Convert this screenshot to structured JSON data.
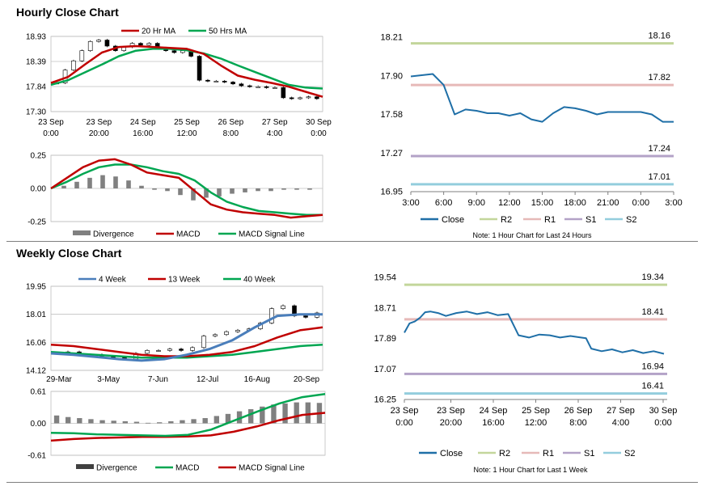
{
  "titles": {
    "hourly": "Hourly Close Chart",
    "weekly": "Weekly Close Chart"
  },
  "colors": {
    "red": "#c00000",
    "green": "#00a651",
    "blue": "#1f6fa7",
    "steel": "#4a7ebb",
    "r2": "#c3d69b",
    "r1": "#e6b9b8",
    "s1": "#b3a2c7",
    "s2": "#93cddd",
    "hist": "#808080"
  },
  "chart_data": [
    {
      "id": "hourly-price",
      "type": "line",
      "legend": [
        "20 Hr MA",
        "50 Hrs MA"
      ],
      "ylim": [
        17.3,
        18.93
      ],
      "yticks": [
        "18.93",
        "18.39",
        "17.84",
        "17.30"
      ],
      "xticks": [
        [
          "23 Sep",
          "0:00"
        ],
        [
          "23 Sep",
          "20:00"
        ],
        [
          "24 Sep",
          "16:00"
        ],
        [
          "25 Sep",
          "12:00"
        ],
        [
          "26 Sep",
          "8:00"
        ],
        [
          "27 Sep",
          "4:00"
        ],
        [
          "30 Sep",
          "0:00"
        ]
      ],
      "series": [
        {
          "name": "20 Hr MA",
          "values": [
            17.92,
            18.05,
            18.32,
            18.58,
            18.7,
            18.72,
            18.7,
            18.68,
            18.66,
            18.55,
            18.3,
            18.08,
            17.99,
            17.92,
            17.84,
            17.73,
            17.62
          ]
        },
        {
          "name": "50 Hrs MA",
          "values": [
            17.88,
            17.98,
            18.15,
            18.32,
            18.5,
            18.62,
            18.66,
            18.66,
            18.63,
            18.56,
            18.45,
            18.3,
            18.16,
            18.02,
            17.88,
            17.82,
            17.8
          ]
        },
        {
          "name": "Candles",
          "values": [
            17.92,
            18.2,
            18.4,
            18.62,
            18.82,
            18.85,
            18.72,
            18.62,
            18.7,
            18.78,
            18.74,
            18.78,
            18.68,
            18.62,
            18.58,
            18.62,
            18.5,
            17.98,
            17.96,
            17.96,
            17.94,
            17.9,
            17.86,
            17.84,
            17.84,
            17.82,
            17.82,
            17.6,
            17.58,
            17.6,
            17.62,
            17.58
          ]
        }
      ]
    },
    {
      "id": "hourly-macd",
      "type": "bar+line",
      "legend": [
        "Divergence",
        "MACD",
        "MACD Signal Line"
      ],
      "ylim": [
        -0.25,
        0.25
      ],
      "yticks": [
        "0.25",
        "0.00",
        "-0.25"
      ],
      "series": [
        {
          "name": "MACD",
          "values": [
            0,
            0.08,
            0.16,
            0.21,
            0.22,
            0.18,
            0.12,
            0.1,
            0.08,
            -0.02,
            -0.12,
            -0.16,
            -0.18,
            -0.19,
            -0.2,
            -0.22,
            -0.21,
            -0.2
          ]
        },
        {
          "name": "MACD Signal Line",
          "values": [
            0,
            0.05,
            0.11,
            0.16,
            0.18,
            0.18,
            0.16,
            0.13,
            0.11,
            0.06,
            -0.03,
            -0.1,
            -0.14,
            -0.17,
            -0.18,
            -0.19,
            -0.2,
            -0.2
          ]
        },
        {
          "name": "Divergence",
          "values": [
            0.02,
            0.05,
            0.08,
            0.1,
            0.09,
            0.06,
            0.02,
            -0.01,
            -0.02,
            -0.05,
            -0.09,
            -0.07,
            -0.06,
            -0.04,
            -0.03,
            -0.02,
            -0.02,
            -0.01,
            -0.01,
            -0.01
          ]
        }
      ]
    },
    {
      "id": "hourly-24h",
      "type": "line",
      "ylim": [
        16.95,
        18.21
      ],
      "yticks": [
        "18.21",
        "17.90",
        "17.58",
        "17.27",
        "16.95"
      ],
      "xticks": [
        "3:00",
        "6:00",
        "9:00",
        "12:00",
        "15:00",
        "18:00",
        "21:00",
        "0:00",
        "3:00"
      ],
      "levels": [
        {
          "name": "R2",
          "value": "18.16"
        },
        {
          "name": "R1",
          "value": "17.82"
        },
        {
          "name": "S1",
          "value": "17.24"
        },
        {
          "name": "S2",
          "value": "17.01"
        }
      ],
      "legend": [
        "Close",
        "R2",
        "R1",
        "S1",
        "S2"
      ],
      "note": "Note: 1 Hour Chart for Last 24 Hours",
      "x": [
        0,
        1,
        2,
        3,
        4,
        5,
        6,
        7,
        8,
        9,
        10,
        11,
        12,
        13,
        14,
        15,
        16,
        17,
        18,
        19,
        20,
        21,
        22,
        23,
        24
      ],
      "values": [
        17.89,
        17.9,
        17.91,
        17.82,
        17.58,
        17.62,
        17.61,
        17.59,
        17.59,
        17.57,
        17.59,
        17.54,
        17.52,
        17.59,
        17.64,
        17.63,
        17.61,
        17.58,
        17.6,
        17.6,
        17.6,
        17.6,
        17.58,
        17.52,
        17.52
      ]
    },
    {
      "id": "weekly-price",
      "type": "line",
      "legend": [
        "4 Week",
        "13 Week",
        "40 Week"
      ],
      "ylim": [
        14.12,
        19.95
      ],
      "yticks": [
        "19.95",
        "18.01",
        "16.06",
        "14.12"
      ],
      "xticks": [
        "29-Mar",
        "3-May",
        "7-Jun",
        "12-Jul",
        "16-Aug",
        "20-Sep"
      ],
      "series": [
        {
          "name": "4 Week",
          "values": [
            15.3,
            15.2,
            15.05,
            14.9,
            14.8,
            14.9,
            15.2,
            15.6,
            16.2,
            17.1,
            17.9,
            18.0,
            18.0
          ]
        },
        {
          "name": "13 Week",
          "values": [
            15.9,
            15.8,
            15.6,
            15.4,
            15.2,
            15.1,
            15.1,
            15.2,
            15.4,
            15.8,
            16.4,
            16.9,
            17.1
          ]
        },
        {
          "name": "40 Week",
          "values": [
            15.4,
            15.3,
            15.2,
            15.1,
            15.0,
            15.0,
            15.0,
            15.1,
            15.2,
            15.4,
            15.6,
            15.8,
            15.9
          ]
        },
        {
          "name": "Candles",
          "values": [
            15.3,
            15.4,
            15.2,
            15.2,
            15.1,
            15.0,
            14.9,
            15.3,
            15.5,
            15.5,
            15.6,
            15.5,
            15.7,
            16.5,
            16.6,
            16.8,
            16.9,
            17.0,
            17.4,
            18.4,
            18.6,
            17.9,
            17.8,
            18.1
          ]
        }
      ]
    },
    {
      "id": "weekly-macd",
      "type": "bar+line",
      "legend": [
        "Divergence",
        "MACD",
        "MACD Signal Line"
      ],
      "ylim": [
        -0.61,
        0.61
      ],
      "yticks": [
        "0.61",
        "0.00",
        "-0.61"
      ],
      "series": [
        {
          "name": "MACD",
          "values": [
            -0.18,
            -0.19,
            -0.21,
            -0.22,
            -0.23,
            -0.24,
            -0.22,
            -0.12,
            0.05,
            0.22,
            0.38,
            0.5,
            0.56
          ]
        },
        {
          "name": "MACD Signal Line",
          "values": [
            -0.33,
            -0.3,
            -0.28,
            -0.27,
            -0.26,
            -0.26,
            -0.25,
            -0.23,
            -0.16,
            -0.06,
            0.06,
            0.16,
            0.2
          ]
        },
        {
          "name": "Divergence",
          "values": [
            0.15,
            0.12,
            0.1,
            0.08,
            0.06,
            0.05,
            0.04,
            0.03,
            0.01,
            0.02,
            0.04,
            0.06,
            0.08,
            0.1,
            0.14,
            0.18,
            0.23,
            0.27,
            0.32,
            0.36,
            0.38,
            0.4,
            0.4,
            0.39
          ]
        }
      ]
    },
    {
      "id": "weekly-hourly",
      "type": "line",
      "ylim": [
        16.25,
        19.54
      ],
      "yticks": [
        "19.54",
        "18.71",
        "17.89",
        "17.07",
        "16.25"
      ],
      "xticks": [
        [
          "23 Sep",
          "0:00"
        ],
        [
          "23 Sep",
          "20:00"
        ],
        [
          "24 Sep",
          "16:00"
        ],
        [
          "25 Sep",
          "12:00"
        ],
        [
          "26 Sep",
          "8:00"
        ],
        [
          "27 Sep",
          "4:00"
        ],
        [
          "30 Sep",
          "0:00"
        ]
      ],
      "levels": [
        {
          "name": "R2",
          "value": "19.34"
        },
        {
          "name": "R1",
          "value": "18.41"
        },
        {
          "name": "S1",
          "value": "16.94"
        },
        {
          "name": "S2",
          "value": "16.41"
        }
      ],
      "legend": [
        "Close",
        "R2",
        "R1",
        "S1",
        "S2"
      ],
      "note": "Note: 1 Hour Chart for Last 1 Week",
      "x": [
        0,
        2,
        4,
        6,
        8,
        10,
        13,
        16,
        20,
        24,
        28,
        32,
        36,
        40,
        44,
        48,
        52,
        56,
        60,
        64,
        68,
        70,
        72,
        76,
        80,
        84,
        88,
        92,
        96,
        100
      ],
      "values": [
        18.05,
        18.3,
        18.35,
        18.45,
        18.6,
        18.62,
        18.58,
        18.5,
        18.58,
        18.62,
        18.55,
        18.6,
        18.52,
        18.55,
        17.98,
        17.92,
        18.0,
        17.98,
        17.92,
        17.96,
        17.92,
        17.9,
        17.62,
        17.55,
        17.6,
        17.52,
        17.58,
        17.5,
        17.55,
        17.48
      ]
    }
  ]
}
